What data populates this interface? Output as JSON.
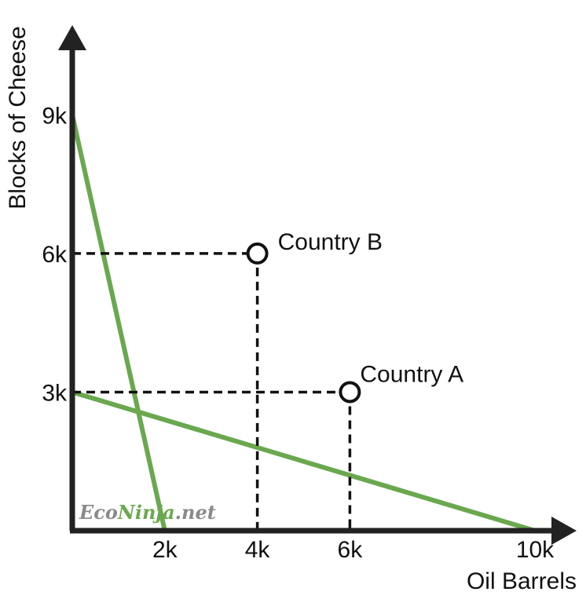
{
  "chart_data": {
    "type": "line",
    "title": "",
    "xlabel": "Oil Barrels",
    "ylabel": "Blocks of Cheese",
    "xlim": [
      0,
      12000
    ],
    "ylim": [
      0,
      10800
    ],
    "x_ticks": [
      {
        "value": 2000,
        "label": "2k"
      },
      {
        "value": 4000,
        "label": "4k"
      },
      {
        "value": 6000,
        "label": "6k"
      },
      {
        "value": 10000,
        "label": "10k"
      }
    ],
    "y_ticks": [
      {
        "value": 3000,
        "label": "3k"
      },
      {
        "value": 6000,
        "label": "6k"
      },
      {
        "value": 9000,
        "label": "9k"
      }
    ],
    "series": [
      {
        "points": [
          [
            0,
            9000
          ],
          [
            2000,
            0
          ]
        ],
        "color": "#6aa84f"
      },
      {
        "points": [
          [
            0,
            3000
          ],
          [
            10000,
            0
          ]
        ],
        "color": "#6aa84f"
      }
    ],
    "points": [
      {
        "label": "Country B",
        "x": 4000,
        "y": 6000
      },
      {
        "label": "Country A",
        "x": 6000,
        "y": 3000
      }
    ],
    "grid": false,
    "watermark": {
      "part1": "Eco",
      "part2": "Ninja",
      "part3": ".net"
    }
  }
}
